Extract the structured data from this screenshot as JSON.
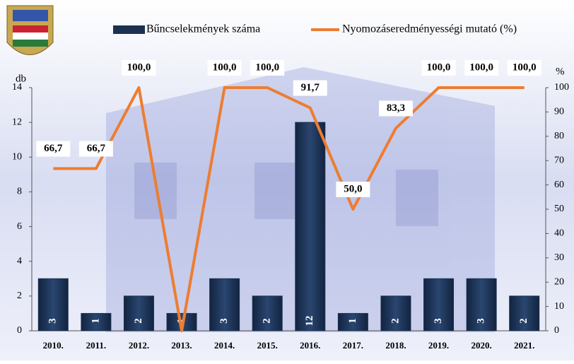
{
  "chart_data": {
    "type": "bar-line",
    "categories": [
      "2010.",
      "2011.",
      "2012.",
      "2013.",
      "2014.",
      "2015.",
      "2016.",
      "2017.",
      "2018.",
      "2019.",
      "2020.",
      "2021."
    ],
    "series": [
      {
        "name": "Bűncselekmények száma",
        "type": "bar",
        "color": "#1c3152",
        "values": [
          3,
          1,
          2,
          1,
          3,
          2,
          12,
          1,
          2,
          3,
          3,
          2
        ]
      },
      {
        "name": "Nyomozáseredményességi mutató (%)",
        "type": "line",
        "axis": "y2",
        "color": "#ed7d31",
        "values": [
          66.7,
          66.7,
          100,
          0,
          100,
          100,
          91.7,
          50,
          83.3,
          100,
          100,
          100
        ],
        "value_labels": [
          "66,7",
          "66,7",
          "100,0",
          null,
          "100,0",
          "100,0",
          "91,7",
          "50,0",
          "83,3",
          "100,0",
          "100,0",
          "100,0"
        ]
      }
    ],
    "y_label": "db",
    "y2_label": "%",
    "ylim": [
      0,
      14
    ],
    "yticks": [
      0,
      2,
      4,
      6,
      8,
      10,
      12,
      14
    ],
    "y2lim": [
      0,
      100
    ],
    "y2ticks": [
      0,
      10,
      20,
      30,
      40,
      50,
      60,
      70,
      80,
      90,
      100
    ]
  }
}
